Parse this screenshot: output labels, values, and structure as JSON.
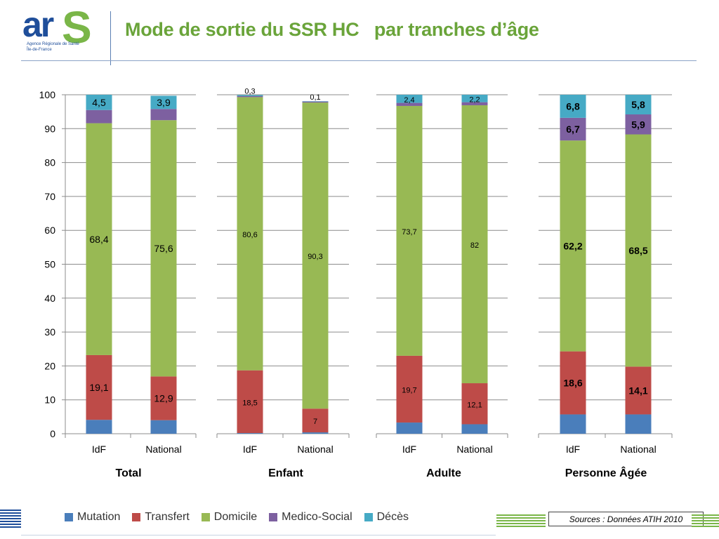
{
  "header": {
    "logo_text_ar": "ar",
    "logo_text_s": "S",
    "logo_line1": "Agence Régionale de Santé",
    "logo_line2": "Île-de-France",
    "title": "Mode de sortie du SSR HC   par tranches d’âge"
  },
  "colors": {
    "mutation": "#4a7ebb",
    "transfert": "#be4b48",
    "domicile": "#98b954",
    "medico_social": "#7d60a0",
    "deces": "#46aac5",
    "title": "#6aa43a"
  },
  "chart_data": {
    "type": "bar",
    "stacked": true,
    "ylim": [
      0,
      100
    ],
    "yticks": [
      "0",
      "10",
      "20",
      "30",
      "40",
      "50",
      "60",
      "70",
      "80",
      "90",
      "100"
    ],
    "grid": true,
    "legend_position": "bottom",
    "series_names": [
      "Mutation",
      "Transfert",
      "Domicile",
      "Medico-Social",
      "Décès"
    ],
    "groups": [
      {
        "name": "Total",
        "categories": [
          "IdF",
          "National"
        ],
        "bars": [
          {
            "values": [
              4.1,
              19.1,
              68.4,
              3.9,
              4.5
            ],
            "labels": {
              "transfert": "19,1",
              "domicile": "68,4",
              "deces": "4,5"
            }
          },
          {
            "values": [
              4.0,
              12.9,
              75.6,
              3.3,
              3.9
            ],
            "labels": {
              "transfert": "12,9",
              "domicile": "75,6",
              "deces": "3,9"
            }
          }
        ]
      },
      {
        "name": "Enfant",
        "categories": [
          "IdF",
          "National"
        ],
        "bars": [
          {
            "values": [
              0.2,
              18.5,
              80.6,
              0.3,
              0.3
            ],
            "labels": {
              "transfert": "18,5",
              "domicile": "80,6",
              "deces": "0,3"
            }
          },
          {
            "values": [
              0.4,
              7.0,
              90.3,
              0.3,
              0.1
            ],
            "labels": {
              "transfert": "7",
              "domicile": "90,3",
              "deces": "0,1"
            }
          }
        ]
      },
      {
        "name": "Adulte",
        "categories": [
          "IdF",
          "National"
        ],
        "bars": [
          {
            "values": [
              3.3,
              19.7,
              73.7,
              0.9,
              2.4
            ],
            "labels": {
              "transfert": "19,7",
              "domicile": "73,7",
              "deces": "2,4"
            }
          },
          {
            "values": [
              2.8,
              12.1,
              82.0,
              0.9,
              2.2
            ],
            "labels": {
              "transfert": "12,1",
              "domicile": "82",
              "deces": "2,2"
            }
          }
        ]
      },
      {
        "name": "Personne Âgée",
        "categories": [
          "IdF",
          "National"
        ],
        "bars": [
          {
            "values": [
              5.7,
              18.6,
              62.2,
              6.7,
              6.8
            ],
            "labels": {
              "transfert": "18,6",
              "domicile": "62,2",
              "medico_social": "6,7",
              "deces": "6,8"
            }
          },
          {
            "values": [
              5.7,
              14.1,
              68.5,
              5.9,
              5.8
            ],
            "labels": {
              "transfert": "14,1",
              "domicile": "68,5",
              "medico_social": "5,9",
              "deces": "5,8"
            }
          }
        ]
      }
    ]
  },
  "legend": {
    "items": [
      {
        "label": "Mutation",
        "key": "mutation"
      },
      {
        "label": "Transfert",
        "key": "transfert"
      },
      {
        "label": "Domicile",
        "key": "domicile"
      },
      {
        "label": "Medico-Social",
        "key": "medico_social"
      },
      {
        "label": "Décès",
        "key": "deces"
      }
    ]
  },
  "footer": {
    "source": "Sources :  Données ATIH 2010"
  }
}
